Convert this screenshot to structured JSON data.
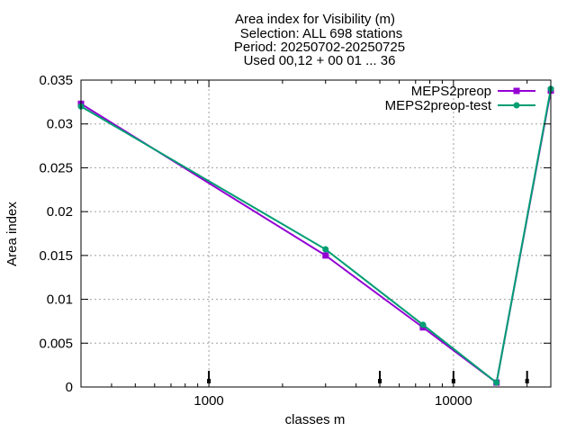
{
  "chart_data": {
    "type": "line",
    "title_lines": [
      "Area index  for Visibility (m)",
      "Selection: ALL    698 stations",
      "Period: 20250702-20250725",
      "Used 00,12 + 00 01 ... 36"
    ],
    "xlabel": "classes m",
    "ylabel": "Area index",
    "x_scale": "log",
    "xlim": [
      300,
      25000
    ],
    "ylim": [
      0,
      0.035
    ],
    "x_ticks": [
      1000,
      10000
    ],
    "x_tick_labels": [
      "1000",
      "10000"
    ],
    "y_ticks": [
      0,
      0.005,
      0.01,
      0.015,
      0.02,
      0.025,
      0.03,
      0.035
    ],
    "y_tick_labels": [
      "0",
      "0.005",
      "0.01",
      "0.015",
      "0.02",
      "0.025",
      "0.03",
      "0.035"
    ],
    "grid": true,
    "legend_position": "top-right",
    "series": [
      {
        "name": "MEPS2preop",
        "color": "#9400d3",
        "marker": "square",
        "x": [
          300,
          3000,
          7500,
          15000,
          25000
        ],
        "y": [
          0.0323,
          0.015,
          0.0068,
          0.0005,
          0.0338
        ]
      },
      {
        "name": "MEPS2preop-test",
        "color": "#009e73",
        "marker": "circle",
        "x": [
          300,
          3000,
          7500,
          15000,
          25000
        ],
        "y": [
          0.032,
          0.0157,
          0.0071,
          0.0005,
          0.034
        ]
      }
    ],
    "class_markers_x": [
      1000,
      5000,
      10000,
      20000
    ]
  }
}
